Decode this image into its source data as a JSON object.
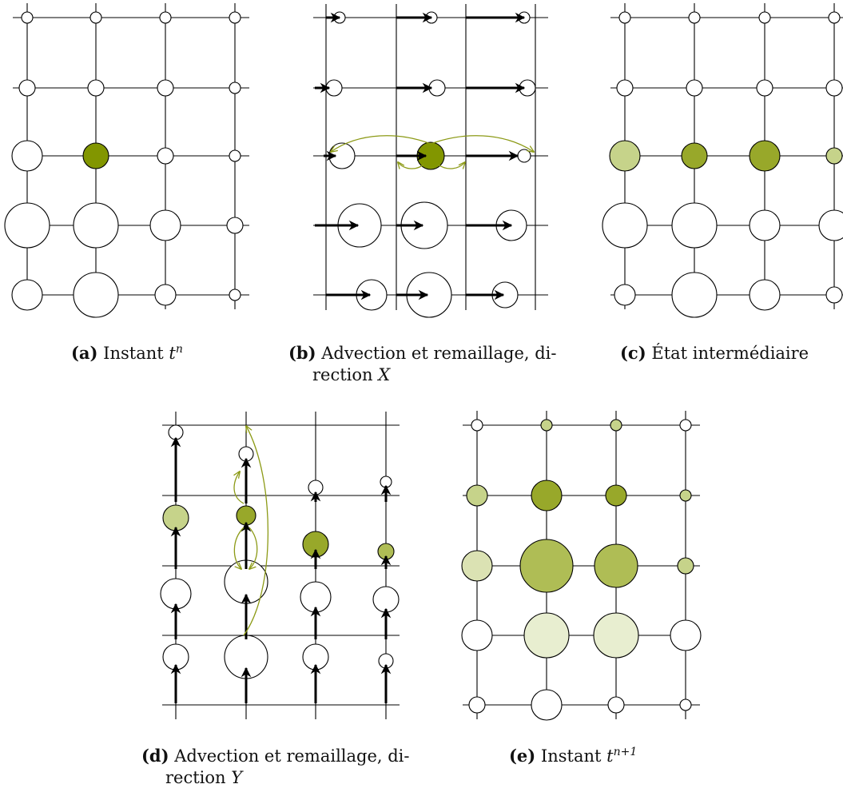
{
  "colors": {
    "dark": "#829600",
    "mid": "#98a82a",
    "midlight": "#afbd55",
    "light": "#c6d38a",
    "pale": "#dbe2b3",
    "faint": "#e8eed0",
    "white": "#ffffff",
    "curve": "#8c9a16"
  },
  "captions": {
    "a": {
      "label": "(a)",
      "text": "Instant ",
      "var": "t",
      "sup": "n"
    },
    "b": {
      "label": "(b)",
      "line1": "Advection et remaillage, di-",
      "line2": "rection ",
      "var": "X"
    },
    "c": {
      "label": "(c)",
      "text": "État intermédiaire"
    },
    "d": {
      "label": "(d)",
      "line1": "Advection et remaillage, di-",
      "line2": "rection ",
      "var": "Y"
    },
    "e": {
      "label": "(e)",
      "text": "Instant ",
      "var": "t",
      "sup": "n+1"
    }
  },
  "panels": [
    {
      "id": "a",
      "nodes": [
        [
          "s",
          "s",
          "s",
          "s"
        ],
        [
          "m",
          "m",
          "m",
          "s"
        ],
        [
          "L",
          "D",
          "m",
          "s"
        ],
        [
          "X",
          "X",
          "L",
          "m"
        ],
        [
          "L",
          "X",
          "M",
          "s"
        ]
      ],
      "fills": [
        [
          "white",
          "white",
          "white",
          "white"
        ],
        [
          "white",
          "white",
          "white",
          "white"
        ],
        [
          "white",
          "dark",
          "white",
          "white"
        ],
        [
          "white",
          "white",
          "white",
          "white"
        ],
        [
          "white",
          "white",
          "white",
          "white"
        ]
      ]
    },
    {
      "id": "c",
      "nodes": [
        [
          "s",
          "s",
          "s",
          "s"
        ],
        [
          "m",
          "m",
          "m",
          "m"
        ],
        [
          "L",
          "D",
          "L",
          "m"
        ],
        [
          "X",
          "X",
          "L",
          "L"
        ],
        [
          "M",
          "X",
          "L",
          "m"
        ]
      ],
      "fills": [
        [
          "white",
          "white",
          "white",
          "white"
        ],
        [
          "white",
          "white",
          "white",
          "white"
        ],
        [
          "light",
          "mid",
          "mid",
          "light"
        ],
        [
          "white",
          "white",
          "white",
          "white"
        ],
        [
          "white",
          "white",
          "white",
          "white"
        ]
      ]
    },
    {
      "id": "e",
      "nodes": [
        [
          "s",
          "s",
          "s",
          "s"
        ],
        [
          "M",
          "L",
          "M",
          "s"
        ],
        [
          "L",
          "XX",
          "XL",
          "m"
        ],
        [
          "L",
          "X",
          "X",
          "L"
        ],
        [
          "m",
          "L",
          "m",
          "s"
        ]
      ],
      "fills": [
        [
          "white",
          "light",
          "light",
          "white"
        ],
        [
          "light",
          "mid",
          "mid",
          "light"
        ],
        [
          "pale",
          "midlight",
          "midlight",
          "light"
        ],
        [
          "white",
          "faint",
          "faint",
          "white"
        ],
        [
          "white",
          "white",
          "white",
          "white"
        ]
      ]
    }
  ]
}
